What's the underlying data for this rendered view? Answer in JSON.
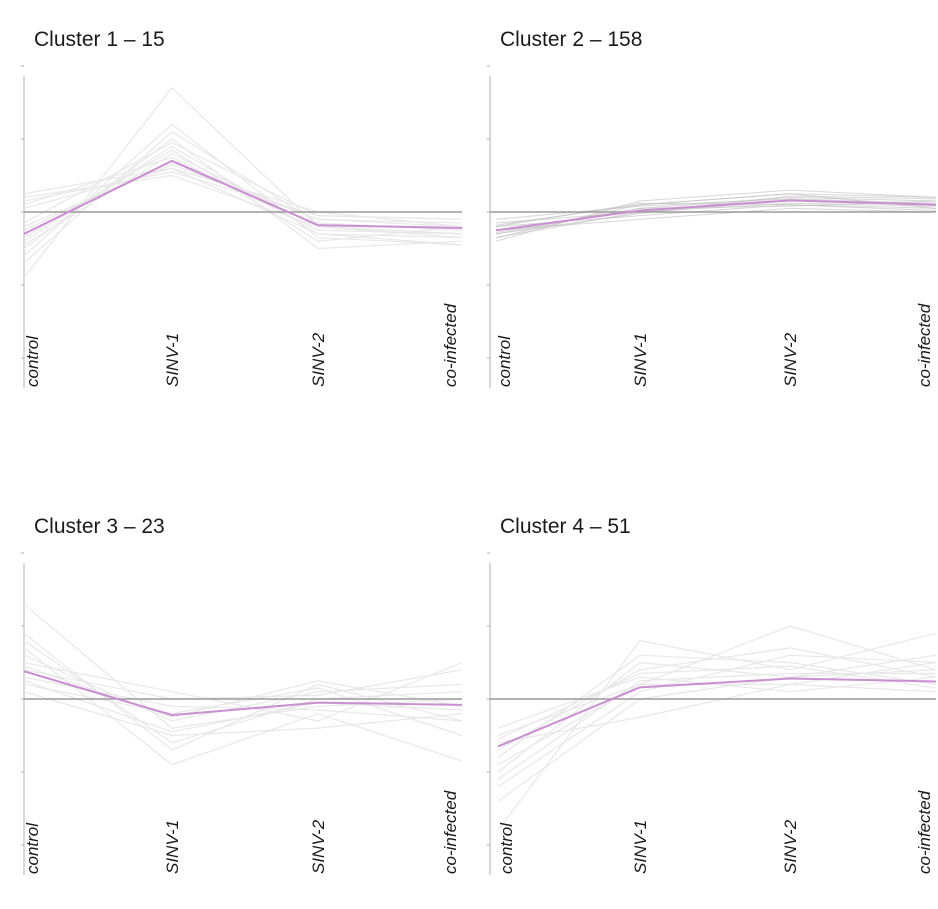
{
  "figure": {
    "panel_titles": [
      "Cluster 1 – 15",
      "Cluster 2 – 158",
      "Cluster 3 – 23",
      "Cluster 4 – 51"
    ]
  },
  "colors": {
    "mean_line": "#c98fd0",
    "member_line": "#e8e8e8",
    "member_line_dense": "#bdbdbd",
    "baseline": "#9a9a9a",
    "axis": "#b0b0b0"
  },
  "chart_data": [
    {
      "type": "line",
      "title": "Cluster 1 – 15",
      "categories": [
        "control",
        "SINV-1",
        "SINV-2",
        "co-infected"
      ],
      "ylim": [
        -2,
        2
      ],
      "grid": false,
      "series": [
        {
          "values": [
            -0.3,
            0.7,
            -0.18,
            -0.22
          ]
        }
      ],
      "member_profiles": [
        [
          -0.9,
          1.7,
          -0.2,
          -0.3
        ],
        [
          -0.6,
          1.2,
          -0.35,
          -0.45
        ],
        [
          0.25,
          0.6,
          0.0,
          -0.2
        ],
        [
          -0.4,
          0.9,
          -0.3,
          -0.35
        ],
        [
          0.15,
          0.55,
          -0.05,
          -0.1
        ],
        [
          -0.5,
          1.0,
          -0.5,
          -0.4
        ],
        [
          0.1,
          0.75,
          -0.25,
          -0.3
        ],
        [
          -0.2,
          0.65,
          -0.1,
          -0.15
        ],
        [
          -0.7,
          1.1,
          -0.15,
          -0.25
        ],
        [
          0.2,
          0.5,
          -0.2,
          -0.35
        ],
        [
          -0.35,
          0.85,
          -0.4,
          -0.2
        ],
        [
          -0.15,
          0.95,
          -0.05,
          -0.1
        ],
        [
          0.05,
          0.6,
          -0.3,
          -0.45
        ],
        [
          -0.45,
          0.8,
          -0.2,
          -0.3
        ],
        [
          -0.25,
          0.7,
          -0.1,
          -0.2
        ]
      ]
    },
    {
      "type": "line",
      "title": "Cluster 2 – 158",
      "categories": [
        "control",
        "SINV-1",
        "SINV-2",
        "co-infected"
      ],
      "ylim": [
        -2,
        2
      ],
      "grid": false,
      "series": [
        {
          "values": [
            -0.25,
            0.02,
            0.16,
            0.1
          ]
        }
      ],
      "member_profiles": [
        [
          -0.35,
          0.1,
          0.25,
          0.2
        ],
        [
          -0.2,
          -0.05,
          0.1,
          0.05
        ],
        [
          -0.3,
          0.05,
          0.2,
          0.15
        ],
        [
          -0.15,
          0.0,
          0.12,
          0.08
        ],
        [
          -0.4,
          0.15,
          0.3,
          0.2
        ],
        [
          -0.25,
          -0.1,
          0.05,
          0.0
        ],
        [
          -0.1,
          0.08,
          0.18,
          0.12
        ],
        [
          -0.3,
          -0.02,
          0.22,
          0.18
        ],
        [
          -0.2,
          0.12,
          0.1,
          0.02
        ],
        [
          -0.35,
          0.0,
          0.15,
          0.1
        ],
        [
          -0.28,
          0.05,
          0.08,
          0.15
        ],
        [
          -0.18,
          0.1,
          0.25,
          0.05
        ]
      ]
    },
    {
      "type": "line",
      "title": "Cluster 3 – 23",
      "categories": [
        "control",
        "SINV-1",
        "SINV-2",
        "co-infected"
      ],
      "ylim": [
        -2,
        2
      ],
      "grid": false,
      "series": [
        {
          "values": [
            0.38,
            -0.22,
            -0.05,
            -0.08
          ]
        }
      ],
      "member_profiles": [
        [
          1.3,
          -0.4,
          -0.1,
          0.0
        ],
        [
          0.9,
          -0.7,
          0.2,
          -0.3
        ],
        [
          0.5,
          0.1,
          -0.3,
          0.5
        ],
        [
          0.2,
          -0.2,
          0.15,
          -0.5
        ],
        [
          0.7,
          -0.9,
          -0.2,
          -0.85
        ],
        [
          0.4,
          0.0,
          0.05,
          0.4
        ],
        [
          0.1,
          -0.5,
          -0.4,
          -0.2
        ],
        [
          0.6,
          -0.3,
          0.1,
          0.2
        ],
        [
          0.3,
          -0.1,
          -0.15,
          -0.3
        ],
        [
          0.8,
          -0.6,
          0.0,
          0.1
        ],
        [
          0.45,
          -0.25,
          0.25,
          -0.1
        ],
        [
          0.25,
          -0.45,
          -0.05,
          -0.15
        ]
      ]
    },
    {
      "type": "line",
      "title": "Cluster 4 – 51",
      "categories": [
        "control",
        "SINV-1",
        "SINV-2",
        "co-infected"
      ],
      "ylim": [
        -2,
        2
      ],
      "grid": false,
      "series": [
        {
          "values": [
            -0.65,
            0.16,
            0.28,
            0.24
          ]
        }
      ],
      "member_profiles": [
        [
          -1.8,
          0.8,
          0.4,
          0.9
        ],
        [
          -0.5,
          0.2,
          1.0,
          0.4
        ],
        [
          -1.0,
          0.5,
          0.3,
          0.6
        ],
        [
          -0.6,
          -0.25,
          0.2,
          0.1
        ],
        [
          -1.2,
          0.1,
          0.6,
          0.5
        ],
        [
          -0.4,
          0.3,
          0.1,
          0.3
        ],
        [
          -0.8,
          0.6,
          0.5,
          0.2
        ],
        [
          -1.4,
          0.0,
          0.3,
          0.4
        ],
        [
          -0.7,
          0.4,
          0.7,
          0.3
        ],
        [
          -0.9,
          0.2,
          0.2,
          0.5
        ],
        [
          -0.55,
          0.35,
          0.45,
          0.15
        ],
        [
          -1.1,
          0.25,
          0.35,
          0.35
        ]
      ]
    }
  ]
}
